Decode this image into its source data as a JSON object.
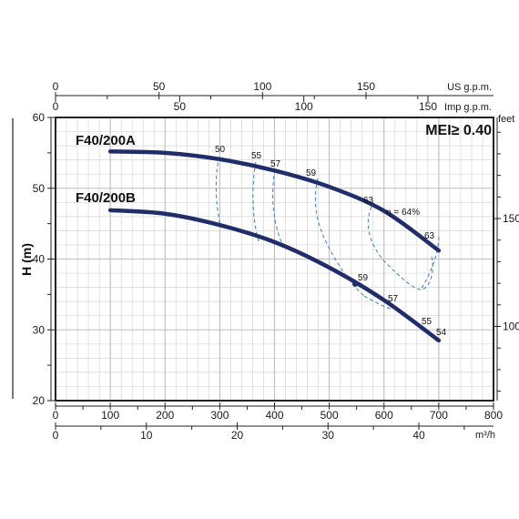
{
  "chart_data": {
    "type": "line",
    "title": "",
    "ylabel": "H (m)",
    "xlabel": "",
    "xlim": [
      0,
      800
    ],
    "ylim": [
      20,
      60
    ],
    "x_unit": "m³/h",
    "grid": true,
    "mei_label": "MEI≥ 0.40",
    "primary_x_ticks": [
      "0",
      "100",
      "200",
      "300",
      "400",
      "500",
      "600",
      "700",
      "800"
    ],
    "primary_y_ticks": [
      "20",
      "30",
      "40",
      "50",
      "60"
    ],
    "secondary_axes": {
      "bottom_m3h": {
        "unit": "m³/h",
        "ticks": [
          "0",
          "10",
          "20",
          "30",
          "40"
        ]
      },
      "top_us": {
        "unit": "US g.p.m.",
        "ticks": [
          "0",
          "50",
          "100",
          "150"
        ]
      },
      "top_imp": {
        "unit": "Imp g.p.m.",
        "ticks": [
          "0",
          "50",
          "100",
          "150"
        ]
      },
      "right_feet": {
        "unit": "feet",
        "ticks": [
          "100",
          "150"
        ]
      }
    },
    "series": [
      {
        "name": "F40/200A",
        "x": [
          100,
          200,
          300,
          400,
          500,
          600,
          700
        ],
        "y": [
          55.2,
          55.0,
          54.1,
          52.5,
          50.2,
          46.8,
          41.2
        ]
      },
      {
        "name": "F40/200B",
        "x": [
          100,
          200,
          300,
          400,
          500,
          600,
          700
        ],
        "y": [
          46.9,
          46.4,
          44.8,
          42.4,
          38.8,
          34.2,
          28.5
        ]
      }
    ],
    "efficiency_labels": [
      "50",
      "55",
      "57",
      "59",
      "63",
      "63",
      "59",
      "57",
      "55",
      "54"
    ],
    "efficiency_peak_label": "η = 64%"
  }
}
